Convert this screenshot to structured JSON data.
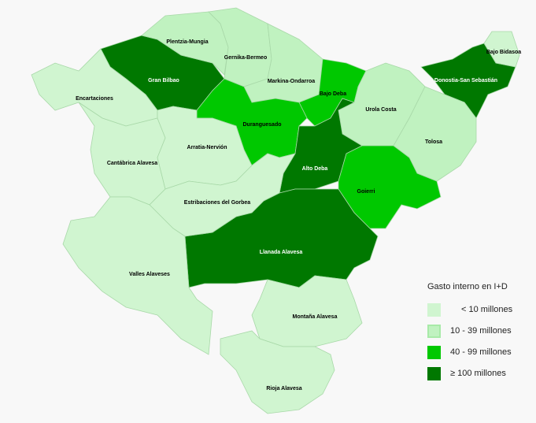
{
  "legend": {
    "title": "Gasto interno en I+D",
    "items": [
      {
        "key": "c1",
        "label": "< 10 millones",
        "color": "#d0f5d0"
      },
      {
        "key": "c2",
        "label": "10 - 39 millones",
        "color": "#c0f2c0"
      },
      {
        "key": "c3",
        "label": "40 - 99 millones",
        "color": "#00c800"
      },
      {
        "key": "c4",
        "label": "≥ 100 millones",
        "color": "#007800"
      }
    ]
  },
  "regions": [
    {
      "name": "Gran Bilbao",
      "class": "c4"
    },
    {
      "name": "Plentzia-Mungia",
      "class": "c2"
    },
    {
      "name": "Gernika-Bermeo",
      "class": "c2"
    },
    {
      "name": "Markina-Ondarroa",
      "class": "c2"
    },
    {
      "name": "Bajo Deba",
      "class": "c3"
    },
    {
      "name": "Duranguesado",
      "class": "c3"
    },
    {
      "name": "Urola Costa",
      "class": "c2"
    },
    {
      "name": "Donostia-San Sebastián",
      "class": "c4"
    },
    {
      "name": "Bajo Bidasoa",
      "class": "c1"
    },
    {
      "name": "Tolosa",
      "class": "c2"
    },
    {
      "name": "Alto Deba",
      "class": "c4"
    },
    {
      "name": "Goierri",
      "class": "c3"
    },
    {
      "name": "Llanada Alavesa",
      "class": "c4"
    },
    {
      "name": "Encartaciones",
      "class": "c1"
    },
    {
      "name": "Cantábrica Alavesa",
      "class": "c1"
    },
    {
      "name": "Arratia-Nervión",
      "class": "c1"
    },
    {
      "name": "Estribaciones del Gorbea",
      "class": "c1"
    },
    {
      "name": "Valles Alaveses",
      "class": "c1"
    },
    {
      "name": "Montaña Alavesa",
      "class": "c1"
    },
    {
      "name": "Rioja Alavesa",
      "class": "c1"
    }
  ]
}
